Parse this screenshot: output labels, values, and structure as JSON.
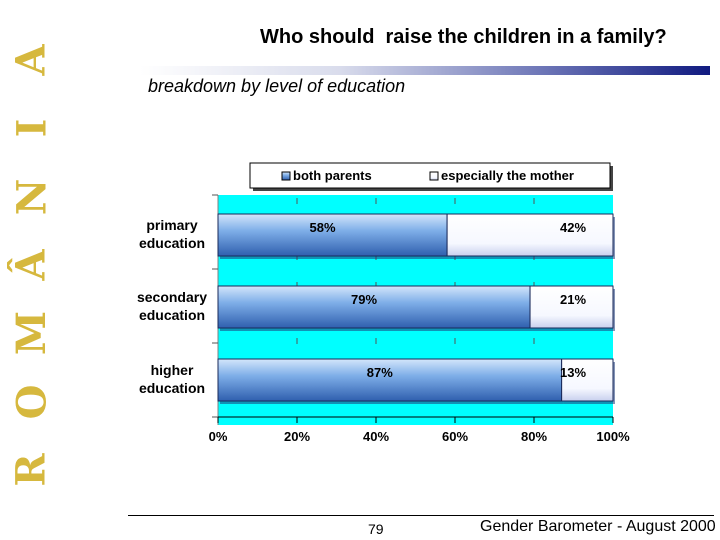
{
  "brand": {
    "letters": [
      "R",
      "O",
      "M",
      "Â",
      "N",
      "I",
      "A"
    ],
    "color": "#d6b83e"
  },
  "header": {
    "title": "Who should  raise the children in a family?",
    "subtitle": "breakdown by level of education"
  },
  "chart_data": {
    "type": "bar",
    "orientation": "horizontal",
    "stacked": true,
    "categories": [
      [
        "primary",
        "education"
      ],
      [
        "secondary",
        "education"
      ],
      [
        "higher",
        "education"
      ]
    ],
    "series": [
      {
        "name": "both parents",
        "values": [
          58,
          79,
          87
        ],
        "labels": [
          "58%",
          "79%",
          "87%"
        ],
        "color": "#4f8ad6"
      },
      {
        "name": "especially the mother",
        "values": [
          42,
          21,
          13
        ],
        "labels": [
          "42%",
          "21%",
          "13%"
        ],
        "color": "#ffffff"
      }
    ],
    "xlim": [
      0,
      100
    ],
    "x_ticks": [
      0,
      20,
      40,
      60,
      80,
      100
    ],
    "x_tick_labels": [
      "0%",
      "20%",
      "40%",
      "60%",
      "80%",
      "100%"
    ],
    "legend_position": "top",
    "plot_background": "#00ffff",
    "legend_background": "#ffffff"
  },
  "footer": {
    "page_number": "79",
    "source": "Gender Barometer - August 2000"
  }
}
